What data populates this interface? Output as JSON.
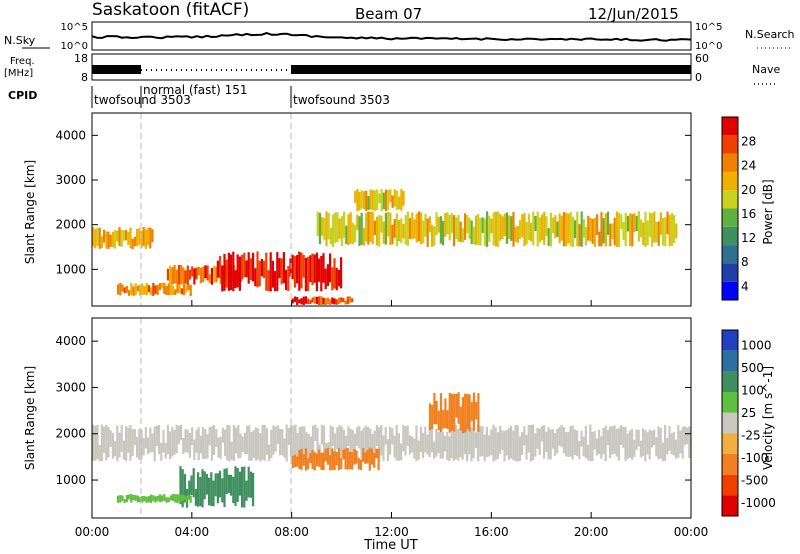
{
  "header": {
    "site_title": "Saskatoon (fitACF)",
    "beam": "Beam 07",
    "date": "12/Jun/2015"
  },
  "strips": {
    "nsky_label": "N.Sky",
    "nsearch_label": "N.Search",
    "nsky_ticks": [
      "10^5",
      "10^0"
    ],
    "nsearch_ticks": [
      "10^5",
      "10^0"
    ],
    "freq_label_1": "Freq.",
    "freq_label_2": "[MHz]",
    "freq_ticks": [
      "18",
      "8"
    ],
    "nave_label": "Nave",
    "nave_ticks": [
      "60",
      "0"
    ],
    "cpid_label": "CPID",
    "cpid_segments": [
      {
        "label": "twofsound 3503",
        "start_h": 0,
        "end_h": 2
      },
      {
        "label": "normal (fast) 151",
        "start_h": 2,
        "end_h": 8
      },
      {
        "label": "twofsound 3503",
        "start_h": 8,
        "end_h": 24
      }
    ]
  },
  "power_panel": {
    "ylabel": "Slant Range [km]",
    "yticks": [
      "4000",
      "3000",
      "2000",
      "1000"
    ],
    "colorbar_label": "Power [dB]",
    "colorbar_ticks": [
      "28",
      "24",
      "20",
      "16",
      "12",
      "8",
      "4"
    ],
    "colorbar_colors": [
      "#0000ff",
      "#1f3fa8",
      "#2f6f8f",
      "#3f8f5f",
      "#5fb040",
      "#c8d020",
      "#f0b000",
      "#f08000",
      "#f04000",
      "#e00000"
    ]
  },
  "velocity_panel": {
    "ylabel": "Slant Range [km]",
    "yticks": [
      "4000",
      "3000",
      "2000",
      "1000"
    ],
    "colorbar_label": "Velocity [m s^-1]",
    "colorbar_ticks": [
      "1000",
      "500",
      "100",
      "25",
      "-25",
      "-100",
      "-500",
      "-1000"
    ],
    "colorbar_colors": [
      "#2040c0",
      "#2f6fa0",
      "#3f8f5f",
      "#5fc040",
      "#c8c8c0",
      "#f0b040",
      "#f08020",
      "#f04000",
      "#e00000"
    ]
  },
  "xaxis": {
    "label": "Time UT",
    "ticks": [
      "00:00",
      "04:00",
      "08:00",
      "12:00",
      "16:00",
      "20:00",
      "00:00"
    ]
  },
  "chart_data": {
    "type": "heatmap",
    "title": "Saskatoon (fitACF)",
    "subtitle": "Beam 07 12/Jun/2015",
    "xlabel": "Time UT",
    "ylabel": "Slant Range [km]",
    "xlim_hours": [
      0,
      24
    ],
    "ylim_km": [
      180,
      4500
    ],
    "power_dB_range": [
      0,
      30
    ],
    "velocity_range": [
      -1000,
      1000
    ],
    "power_bands": [
      {
        "t_start": 0,
        "t_end": 2.5,
        "range_km": [
          1450,
          1950
        ],
        "power_db": 20
      },
      {
        "t_start": 1,
        "t_end": 4,
        "range_km": [
          400,
          700
        ],
        "power_db": 22
      },
      {
        "t_start": 3,
        "t_end": 6,
        "range_km": [
          650,
          1100
        ],
        "power_db": 24
      },
      {
        "t_start": 5,
        "t_end": 10,
        "range_km": [
          500,
          1400
        ],
        "power_db": 28
      },
      {
        "t_start": 8,
        "t_end": 10.5,
        "range_km": [
          200,
          400
        ],
        "power_db": 26
      },
      {
        "t_start": 9,
        "t_end": 23.5,
        "range_km": [
          1500,
          2300
        ],
        "power_db": 18
      },
      {
        "t_start": 10.5,
        "t_end": 12.5,
        "range_km": [
          2300,
          2800
        ],
        "power_db": 18
      }
    ],
    "velocity_bands": [
      {
        "t_start": 0,
        "t_end": 24,
        "range_km": [
          1400,
          2200
        ],
        "velocity": 0
      },
      {
        "t_start": 3.5,
        "t_end": 6.5,
        "range_km": [
          400,
          1300
        ],
        "velocity": 150
      },
      {
        "t_start": 8,
        "t_end": 11.5,
        "range_km": [
          1200,
          1700
        ],
        "velocity": -300
      },
      {
        "t_start": 13.5,
        "t_end": 15.5,
        "range_km": [
          2000,
          2900
        ],
        "velocity": -300
      },
      {
        "t_start": 1,
        "t_end": 4,
        "range_km": [
          500,
          700
        ],
        "velocity": 50
      }
    ]
  }
}
